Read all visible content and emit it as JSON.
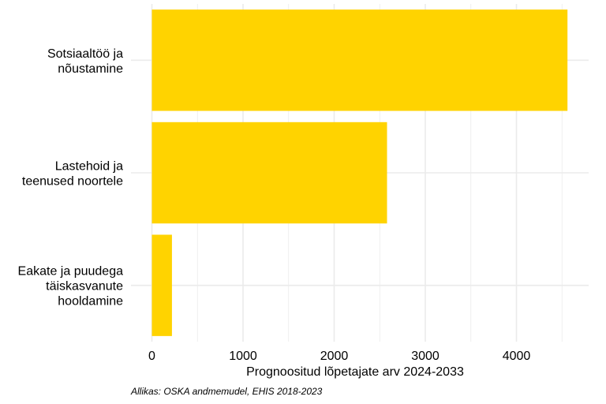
{
  "chart_data": {
    "type": "bar",
    "orientation": "horizontal",
    "categories": [
      [
        "Sotsiaaltöö ja",
        "nõustamine"
      ],
      [
        "Lastehoid ja",
        "teenused noortele"
      ],
      [
        "Eakate ja puudega",
        "täiskasvanute",
        "hooldamine"
      ]
    ],
    "values": [
      4560,
      2580,
      220
    ],
    "xlabel": "Prognoositud lõpetajate arv 2024-2033",
    "ylabel": "",
    "xlim": [
      0,
      4800
    ],
    "xticks": [
      0,
      1000,
      2000,
      3000,
      4000
    ],
    "grid": true,
    "bar_color": "#FFD300",
    "grid_color": "#EBEBEB"
  },
  "caption": "Allikas: OSKA andmemudel, EHIS 2018-2023"
}
